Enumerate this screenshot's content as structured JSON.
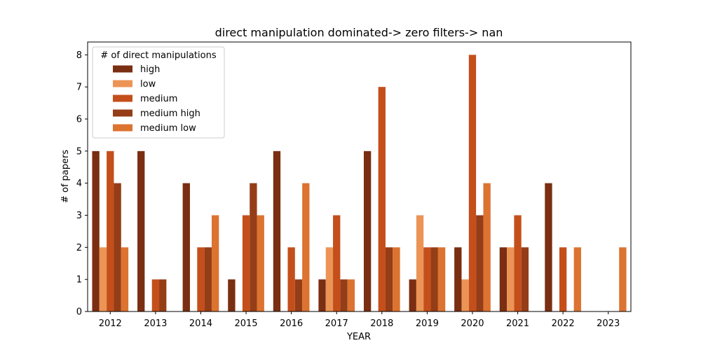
{
  "chart_data": {
    "type": "bar",
    "title": "direct manipulation dominated-> zero filters-> nan",
    "xlabel": "YEAR",
    "ylabel": "# of papers",
    "ylim": [
      0,
      8.4
    ],
    "yticks": [
      0,
      1,
      2,
      3,
      4,
      5,
      6,
      7,
      8
    ],
    "grid": false,
    "legend_title": "# of direct manipulations",
    "legend_position": "top-left",
    "categories": [
      "2012",
      "2013",
      "2014",
      "2015",
      "2016",
      "2017",
      "2018",
      "2019",
      "2020",
      "2021",
      "2022",
      "2023"
    ],
    "series": [
      {
        "name": "high",
        "color": "#7a2e12",
        "values": [
          5,
          5,
          4,
          1,
          5,
          1,
          5,
          1,
          2,
          2,
          4,
          0
        ]
      },
      {
        "name": "low",
        "color": "#ec9456",
        "values": [
          2,
          0,
          0,
          0,
          0,
          2,
          0,
          3,
          1,
          2,
          0,
          0
        ]
      },
      {
        "name": "medium",
        "color": "#c44f1b",
        "values": [
          5,
          1,
          2,
          3,
          2,
          3,
          7,
          2,
          8,
          3,
          2,
          0
        ]
      },
      {
        "name": "medium high",
        "color": "#943d17",
        "values": [
          4,
          1,
          2,
          4,
          1,
          1,
          2,
          2,
          3,
          2,
          0,
          0
        ]
      },
      {
        "name": "medium low",
        "color": "#dc7330",
        "values": [
          2,
          0,
          3,
          3,
          4,
          1,
          2,
          2,
          4,
          0,
          2,
          2
        ]
      }
    ]
  }
}
